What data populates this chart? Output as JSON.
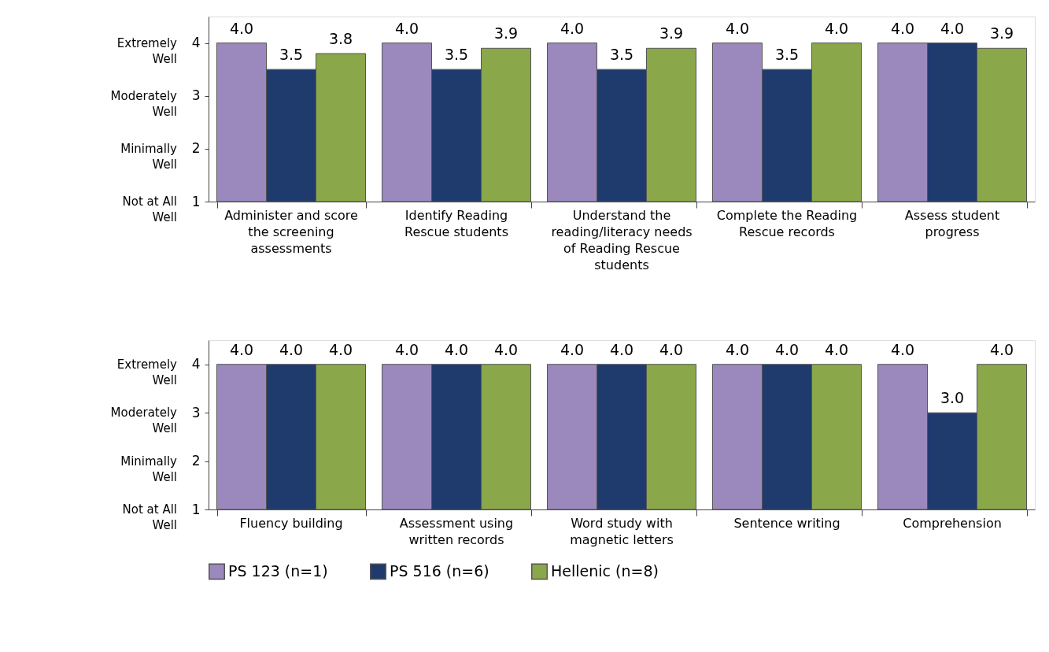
{
  "chart_data": [
    {
      "type": "bar",
      "categories": [
        "Administer and score the screening assessments",
        "Identify Reading Rescue students",
        "Understand the reading/literacy needs of Reading Rescue students",
        "Complete the Reading Rescue records",
        "Assess student progress"
      ],
      "series": [
        {
          "name": "PS 123 (n=1)",
          "color": "#9b89bd",
          "values": [
            4.0,
            4.0,
            4.0,
            4.0,
            4.0
          ],
          "value_labels": [
            "4.0",
            "4.0",
            "4.0",
            "4.0",
            "4.0"
          ]
        },
        {
          "name": "PS 516 (n=6)",
          "color": "#1f3b6e",
          "values": [
            3.5,
            3.5,
            3.5,
            3.5,
            4.0
          ],
          "value_labels": [
            "3.5",
            "3.5",
            "3.5",
            "3.5",
            "4.0"
          ]
        },
        {
          "name": "Hellenic (n=8)",
          "color": "#8aa84a",
          "values": [
            3.8,
            3.9,
            3.9,
            4.0,
            3.9
          ],
          "value_labels": [
            "3.8",
            "3.9",
            "3.9",
            "4.0",
            "3.9"
          ]
        }
      ],
      "ylim": [
        1,
        4.5
      ],
      "yticks": [
        1,
        2,
        3,
        4
      ],
      "annotations": [
        "Not at All Well",
        "Minimally Well",
        "Moderately Well",
        "Extremely Well"
      ],
      "grid": false,
      "legend": "bottom"
    },
    {
      "type": "bar",
      "categories": [
        "Fluency building",
        "Assessment using written records",
        "Word study with magnetic letters",
        "Sentence writing",
        "Comprehension"
      ],
      "series": [
        {
          "name": "PS 123 (n=1)",
          "color": "#9b89bd",
          "values": [
            4.0,
            4.0,
            4.0,
            4.0,
            4.0
          ],
          "value_labels": [
            "4.0",
            "4.0",
            "4.0",
            "4.0",
            "4.0"
          ]
        },
        {
          "name": "PS 516 (n=6)",
          "color": "#1f3b6e",
          "values": [
            4.0,
            4.0,
            4.0,
            4.0,
            3.0
          ],
          "value_labels": [
            "4.0",
            "4.0",
            "4.0",
            "4.0",
            "3.0"
          ]
        },
        {
          "name": "Hellenic (n=8)",
          "color": "#8aa84a",
          "values": [
            4.0,
            4.0,
            4.0,
            4.0,
            4.0
          ],
          "value_labels": [
            "4.0",
            "4.0",
            "4.0",
            "4.0",
            "4.0"
          ]
        }
      ],
      "ylim": [
        1,
        4.5
      ],
      "yticks": [
        1,
        2,
        3,
        4
      ],
      "annotations": [
        "Not at All Well",
        "Minimally Well",
        "Moderately Well",
        "Extremely Well"
      ],
      "grid": false,
      "legend": "bottom"
    }
  ]
}
